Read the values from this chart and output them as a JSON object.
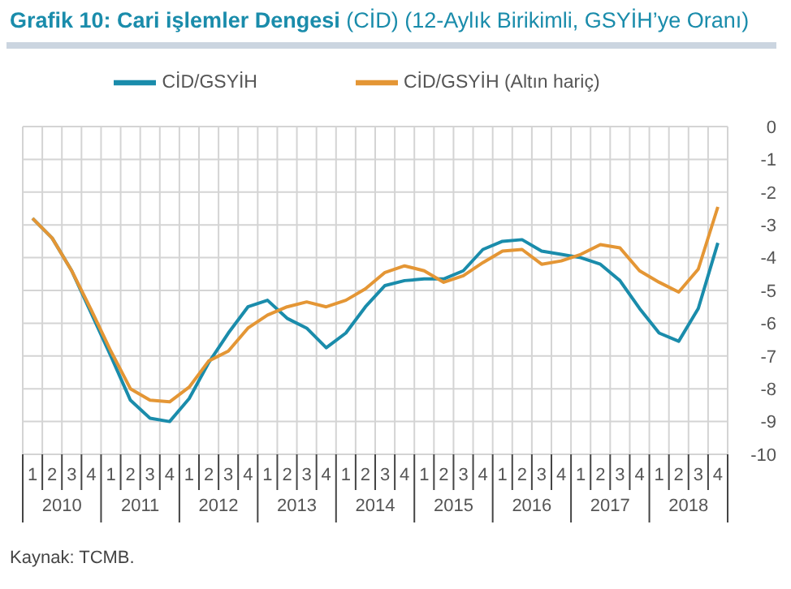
{
  "chart_data": {
    "type": "line",
    "title": "Grafik 10: Cari işlemler Dengesi",
    "subtitle": "(CİD) (12-Aylık Birikimli, GSYİH’ye Oranı)",
    "categories": [
      "1",
      "2",
      "3",
      "4",
      "1",
      "2",
      "3",
      "4",
      "1",
      "2",
      "3",
      "4",
      "1",
      "2",
      "3",
      "4",
      "1",
      "2",
      "3",
      "4",
      "1",
      "2",
      "3",
      "4",
      "1",
      "2",
      "3",
      "4",
      "1",
      "2",
      "3",
      "4",
      "1",
      "2",
      "3",
      "4"
    ],
    "series": [
      {
        "name": "CİD/GSYİH",
        "color": "#1a8cab",
        "values": [
          -2.8,
          -3.4,
          -4.4,
          -5.7,
          -7.0,
          -8.35,
          -8.9,
          -9.0,
          -8.3,
          -7.2,
          -6.3,
          -5.5,
          -5.3,
          -5.85,
          -6.15,
          -6.75,
          -6.3,
          -5.5,
          -4.85,
          -4.7,
          -4.65,
          -4.65,
          -4.4,
          -3.75,
          -3.5,
          -3.45,
          -3.8,
          -3.9,
          -4.0,
          -4.2,
          -4.7,
          -5.55,
          -6.3,
          -6.55,
          -5.55,
          -3.55
        ]
      },
      {
        "name": "CİD/GSYİH (Altın  hariç)",
        "color": "#e49635",
        "values": [
          -2.8,
          -3.4,
          -4.4,
          -5.6,
          -6.85,
          -8.0,
          -8.35,
          -8.4,
          -7.95,
          -7.15,
          -6.85,
          -6.15,
          -5.75,
          -5.5,
          -5.35,
          -5.5,
          -5.3,
          -4.95,
          -4.45,
          -4.25,
          -4.4,
          -4.75,
          -4.55,
          -4.15,
          -3.8,
          -3.75,
          -4.2,
          -4.1,
          -3.9,
          -3.6,
          -3.7,
          -4.4,
          -4.75,
          -5.05,
          -4.35,
          -2.45
        ]
      }
    ],
    "ylim": [
      -10,
      0
    ],
    "yticks": [
      0,
      -1,
      -2,
      -3,
      -4,
      -5,
      -6,
      -7,
      -8,
      -9,
      -10
    ],
    "grid": true,
    "legend": "top",
    "marker": "none",
    "line_style": "solid",
    "annotations": [
      "2010",
      "2011",
      "2012",
      "2013",
      "2014",
      "2015",
      "2016",
      "2017",
      "2018",
      "Kaynak: TCMB."
    ]
  }
}
